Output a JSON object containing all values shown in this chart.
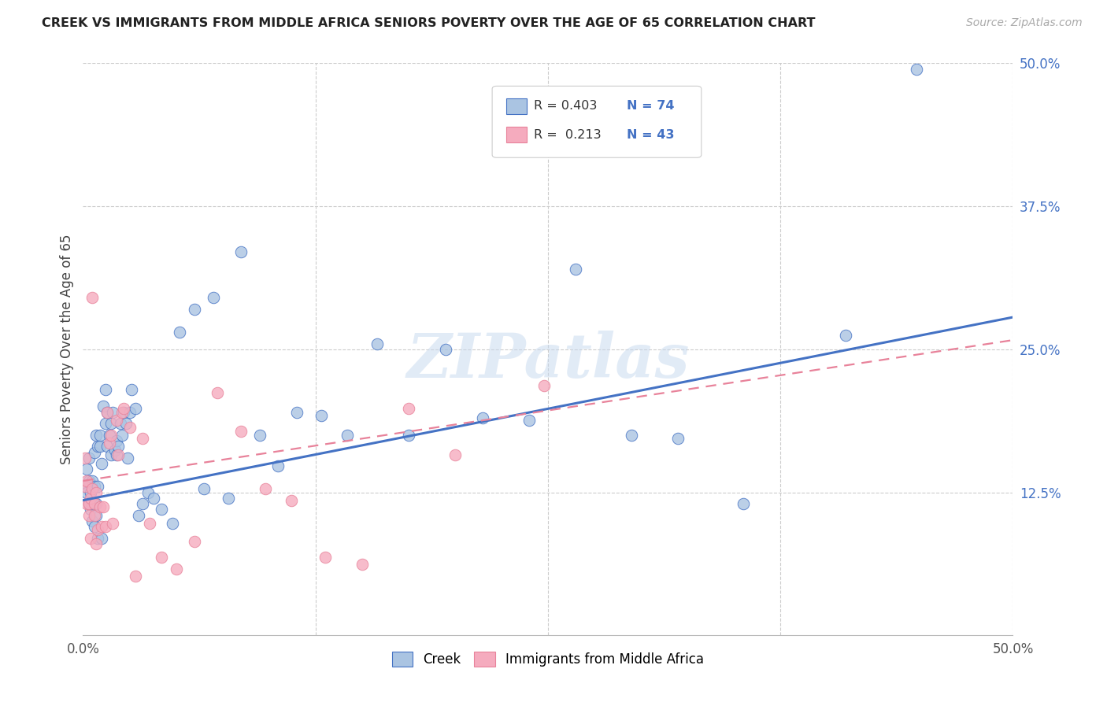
{
  "title": "CREEK VS IMMIGRANTS FROM MIDDLE AFRICA SENIORS POVERTY OVER THE AGE OF 65 CORRELATION CHART",
  "source": "Source: ZipAtlas.com",
  "ylabel": "Seniors Poverty Over the Age of 65",
  "legend_label1": "Creek",
  "legend_label2": "Immigrants from Middle Africa",
  "R1": 0.403,
  "N1": 74,
  "R2": 0.213,
  "N2": 43,
  "xlim": [
    0.0,
    0.5
  ],
  "ylim": [
    0.0,
    0.5
  ],
  "color1": "#aac4e2",
  "color2": "#f5abbe",
  "line_color1": "#4472c4",
  "line_color2": "#e8829a",
  "watermark": "ZIPatlas",
  "line1_x0": 0.0,
  "line1_y0": 0.118,
  "line1_x1": 0.5,
  "line1_y1": 0.278,
  "line2_x0": 0.0,
  "line2_y0": 0.135,
  "line2_x1": 0.5,
  "line2_y1": 0.258,
  "creek_x": [
    0.001,
    0.002,
    0.002,
    0.003,
    0.003,
    0.003,
    0.004,
    0.004,
    0.005,
    0.005,
    0.005,
    0.006,
    0.006,
    0.006,
    0.006,
    0.007,
    0.007,
    0.007,
    0.008,
    0.008,
    0.008,
    0.009,
    0.009,
    0.01,
    0.01,
    0.011,
    0.012,
    0.012,
    0.013,
    0.013,
    0.014,
    0.015,
    0.015,
    0.016,
    0.017,
    0.018,
    0.018,
    0.019,
    0.02,
    0.021,
    0.022,
    0.023,
    0.024,
    0.025,
    0.026,
    0.028,
    0.03,
    0.032,
    0.035,
    0.038,
    0.042,
    0.048,
    0.052,
    0.06,
    0.065,
    0.07,
    0.078,
    0.085,
    0.095,
    0.105,
    0.115,
    0.128,
    0.142,
    0.158,
    0.175,
    0.195,
    0.215,
    0.24,
    0.265,
    0.295,
    0.32,
    0.355,
    0.41,
    0.448
  ],
  "creek_y": [
    0.13,
    0.125,
    0.145,
    0.115,
    0.135,
    0.155,
    0.11,
    0.125,
    0.1,
    0.115,
    0.135,
    0.095,
    0.115,
    0.13,
    0.16,
    0.105,
    0.115,
    0.175,
    0.13,
    0.085,
    0.165,
    0.165,
    0.175,
    0.085,
    0.15,
    0.2,
    0.215,
    0.185,
    0.165,
    0.195,
    0.175,
    0.185,
    0.158,
    0.195,
    0.162,
    0.158,
    0.17,
    0.165,
    0.185,
    0.175,
    0.195,
    0.185,
    0.155,
    0.195,
    0.215,
    0.198,
    0.105,
    0.115,
    0.125,
    0.12,
    0.11,
    0.098,
    0.265,
    0.285,
    0.128,
    0.295,
    0.12,
    0.335,
    0.175,
    0.148,
    0.195,
    0.192,
    0.175,
    0.255,
    0.175,
    0.25,
    0.19,
    0.188,
    0.32,
    0.175,
    0.172,
    0.115,
    0.262,
    0.495
  ],
  "immig_x": [
    0.001,
    0.001,
    0.002,
    0.002,
    0.003,
    0.003,
    0.004,
    0.004,
    0.005,
    0.005,
    0.006,
    0.006,
    0.007,
    0.007,
    0.008,
    0.009,
    0.01,
    0.011,
    0.012,
    0.013,
    0.014,
    0.015,
    0.016,
    0.018,
    0.019,
    0.021,
    0.022,
    0.025,
    0.028,
    0.032,
    0.036,
    0.042,
    0.05,
    0.06,
    0.072,
    0.085,
    0.098,
    0.112,
    0.13,
    0.15,
    0.175,
    0.2,
    0.248
  ],
  "immig_y": [
    0.13,
    0.155,
    0.115,
    0.135,
    0.115,
    0.105,
    0.12,
    0.085,
    0.295,
    0.128,
    0.105,
    0.115,
    0.08,
    0.125,
    0.092,
    0.112,
    0.095,
    0.112,
    0.095,
    0.195,
    0.168,
    0.175,
    0.098,
    0.188,
    0.158,
    0.195,
    0.198,
    0.182,
    0.052,
    0.172,
    0.098,
    0.068,
    0.058,
    0.082,
    0.212,
    0.178,
    0.128,
    0.118,
    0.068,
    0.062,
    0.198,
    0.158,
    0.218
  ]
}
